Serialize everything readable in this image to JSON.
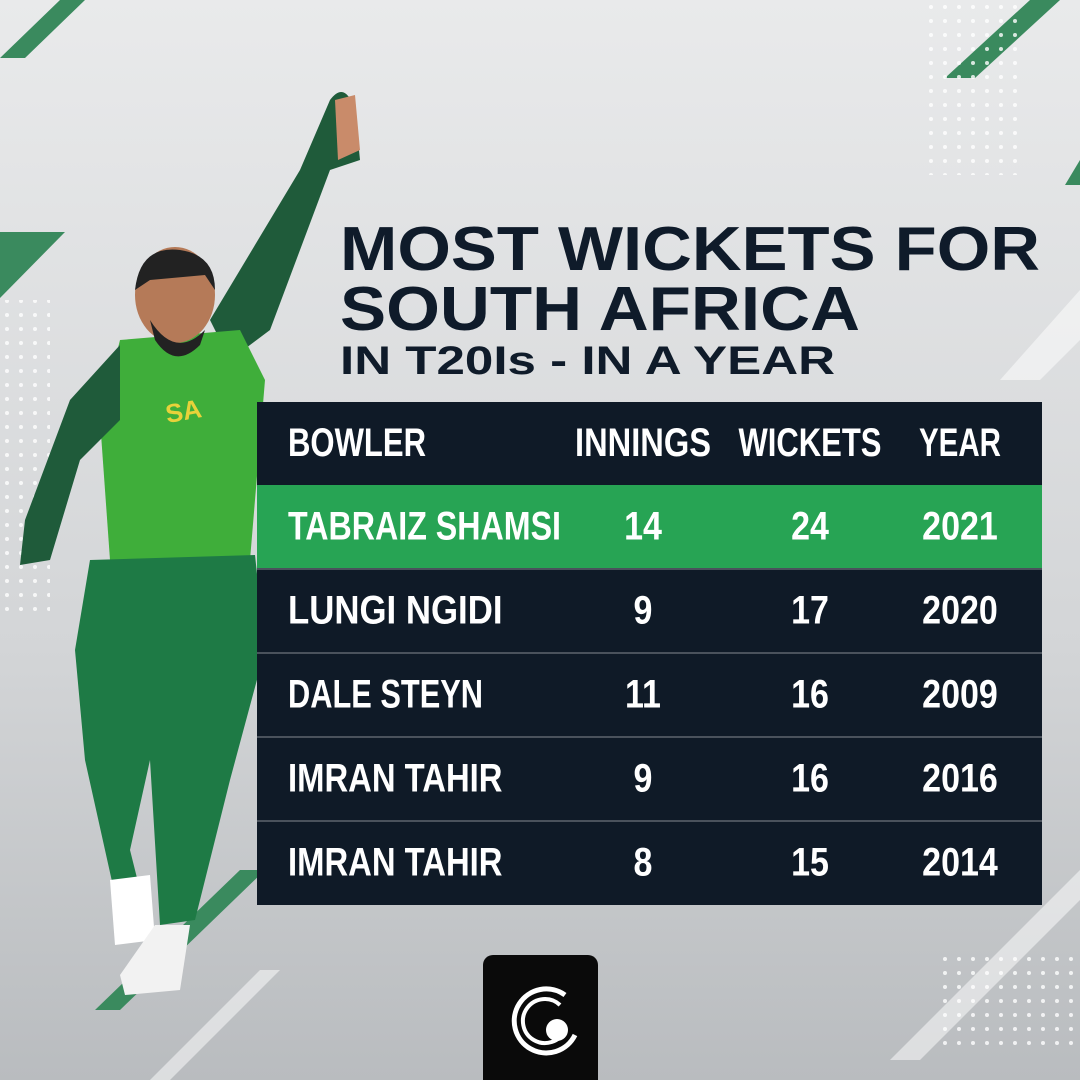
{
  "title": {
    "line1": "MOST WICKETS FOR",
    "line2": "SOUTH AFRICA",
    "line3": "IN T20Is - IN A YEAR"
  },
  "table": {
    "columns": [
      "BOWLER",
      "INNINGS",
      "WICKETS",
      "YEAR"
    ],
    "rows": [
      [
        "TABRAIZ SHAMSI",
        14,
        24,
        2021
      ],
      [
        "LUNGI NGIDI",
        9,
        17,
        2020
      ],
      [
        "DALE STEYN",
        11,
        16,
        2009
      ],
      [
        "IMRAN TAHIR",
        9,
        16,
        2016
      ],
      [
        "IMRAN TAHIR",
        8,
        15,
        2014
      ]
    ]
  }
}
